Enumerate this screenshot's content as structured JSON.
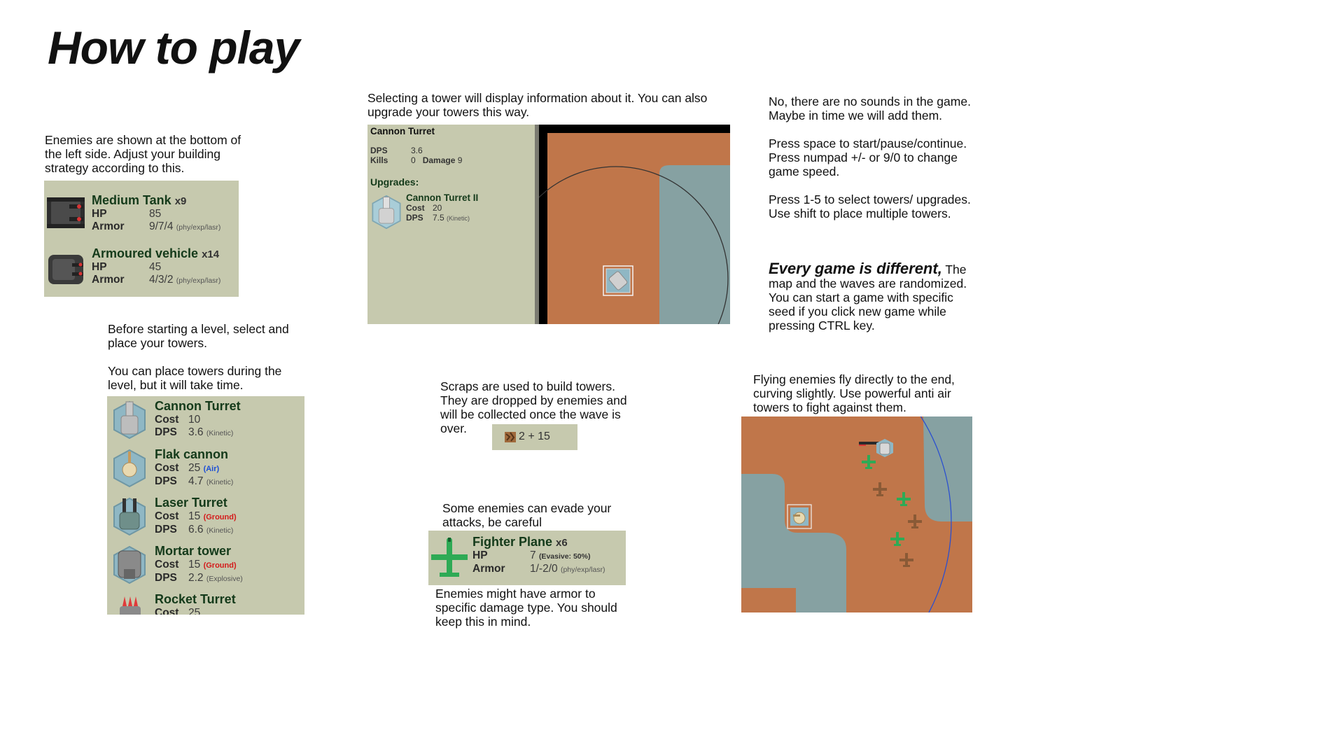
{
  "page": {
    "title": "How to play"
  },
  "colors": {
    "panel": "#c6c9ae",
    "text_green": "#143a1a",
    "ground": "#c0764a",
    "water": "#86a1a2",
    "air": "#1c4fd6",
    "ground_tag": "#d41a1a",
    "plane": "#2eaa55"
  },
  "notes": {
    "enemies": "Enemies are shown at the bottom of the left side. Adjust your building strategy according to this.",
    "before_level": "Before starting a level, select and place your towers.",
    "during_level": "You can place towers during the level, but it will take time.",
    "selecting": "Selecting a tower will display information about it. You can also upgrade your towers this way.",
    "scraps": "Scraps are used to build towers. They are dropped by enemies and will be collected once the wave is over.",
    "evade": "Some enemies can evade your attacks, be careful",
    "armor": "Enemies might have armor to specific damage type. You should keep this in mind.",
    "sounds": "No, there are no sounds in the game. Maybe in time we will add them.",
    "controls": "Press space to start/pause/continue. Press numpad +/- or 9/0 to change game speed.",
    "select_keys": "Press 1-5 to select towers/ upgrades. Use shift to place multiple towers.",
    "different_bold": "Every game is different,",
    "different_rest": " The map and the waves are randomized. You can start a game with specific seed if you click new game while pressing CTRL key.",
    "flying": "Flying enemies fly directly to the end, curving slightly. Use powerful anti air towers to fight against them."
  },
  "enemy_panel": {
    "items": [
      {
        "name": "Medium Tank",
        "count": "x9",
        "hp_label": "HP",
        "hp": "85",
        "armor_label": "Armor",
        "armor": "9/7/4",
        "armor_note": "(phy/exp/lasr)",
        "icon": "tank-icon"
      },
      {
        "name": "Armoured vehicle",
        "count": "x14",
        "hp_label": "HP",
        "hp": "45",
        "armor_label": "Armor",
        "armor": "4/3/2",
        "armor_note": "(phy/exp/lasr)",
        "icon": "vehicle-icon"
      }
    ]
  },
  "tower_panel": {
    "items": [
      {
        "name": "Cannon Turret",
        "cost_label": "Cost",
        "cost": "10",
        "tag": "",
        "dps_label": "DPS",
        "dps": "3.6",
        "dtype": "(Kinetic)",
        "icon": "cannon-icon"
      },
      {
        "name": "Flak cannon",
        "cost_label": "Cost",
        "cost": "25",
        "tag": "(Air)",
        "dps_label": "DPS",
        "dps": "4.7",
        "dtype": "(Kinetic)",
        "icon": "flak-icon"
      },
      {
        "name": "Laser Turret",
        "cost_label": "Cost",
        "cost": "15",
        "tag": "(Ground)",
        "dps_label": "DPS",
        "dps": "6.6",
        "dtype": "(Kinetic)",
        "icon": "laser-icon"
      },
      {
        "name": "Mortar tower",
        "cost_label": "Cost",
        "cost": "15",
        "tag": "(Ground)",
        "dps_label": "DPS",
        "dps": "2.2",
        "dtype": "(Explosive)",
        "icon": "mortar-icon"
      },
      {
        "name": "Rocket Turret",
        "cost_label": "Cost",
        "cost": "25",
        "icon": "rocket-icon"
      }
    ]
  },
  "info_panel": {
    "name": "Cannon Turret",
    "dps_label": "DPS",
    "dps": "3.6",
    "kills_label": "Kills",
    "kills": "0",
    "damage_label": "Damage",
    "damage": "9",
    "upgrades_label": "Upgrades:",
    "upgrade": {
      "name": "Cannon Turret II",
      "cost_label": "Cost",
      "cost": "20",
      "dps_label": "DPS",
      "dps": "7.5",
      "dtype": "(Kinetic)"
    }
  },
  "scraps": {
    "text": "2 + 15",
    "icon": "scrap-icon"
  },
  "fighter_panel": {
    "name": "Fighter Plane",
    "count": "x6",
    "hp_label": "HP",
    "hp": "7",
    "evasive": "(Evasive: 50%)",
    "armor_label": "Armor",
    "armor": "1/-2/0",
    "armor_note": "(phy/exp/lasr)"
  }
}
